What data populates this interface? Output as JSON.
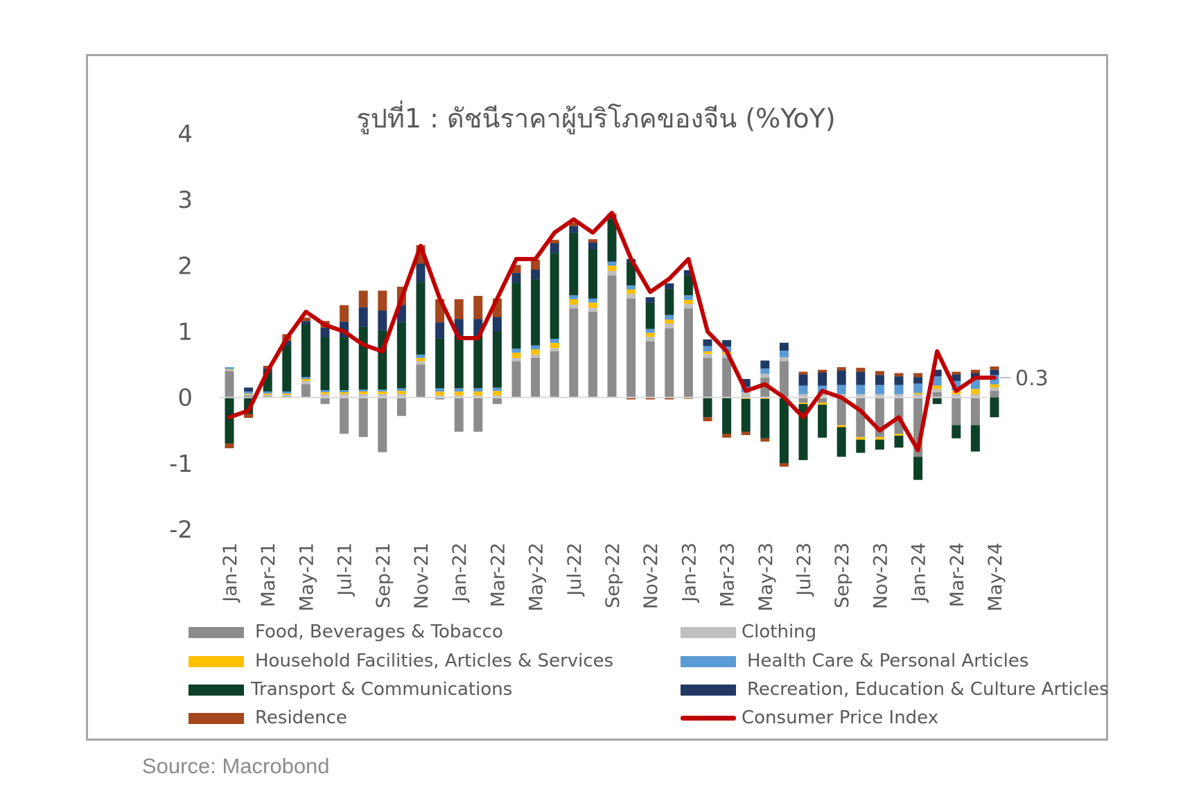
{
  "chart_data": {
    "type": "bar",
    "stacked": true,
    "title": "รูปที่1 : ดัชนีราคาผู้บริโภคของจีน (%YoY)",
    "ylim": [
      -2,
      4
    ],
    "yticks": [
      "4",
      "3",
      "2",
      "1",
      "0",
      "-1",
      "-2"
    ],
    "grid": false,
    "legend_position": "bottom",
    "source": "Source:  Macrobond",
    "last_value_label": "0.3",
    "categories": [
      "Jan-21",
      "Feb-21",
      "Mar-21",
      "Apr-21",
      "May-21",
      "Jun-21",
      "Jul-21",
      "Aug-21",
      "Sep-21",
      "Oct-21",
      "Nov-21",
      "Dec-21",
      "Jan-22",
      "Feb-22",
      "Mar-22",
      "Apr-22",
      "May-22",
      "Jun-22",
      "Jul-22",
      "Aug-22",
      "Sep-22",
      "Oct-22",
      "Nov-22",
      "Dec-22",
      "Jan-23",
      "Feb-23",
      "Mar-23",
      "Apr-23",
      "May-23",
      "Jun-23",
      "Jul-23",
      "Aug-23",
      "Sep-23",
      "Oct-23",
      "Nov-23",
      "Dec-23",
      "Jan-24",
      "Feb-24",
      "Mar-24",
      "Apr-24",
      "May-24"
    ],
    "tick_labels": [
      "Jan-21",
      "Mar-21",
      "May-21",
      "Jul-21",
      "Sep-21",
      "Nov-21",
      "Jan-22",
      "Mar-22",
      "May-22",
      "Jul-22",
      "Sep-22",
      "Nov-22",
      "Jan-23",
      "Mar-23",
      "May-23",
      "Jul-23",
      "Sep-23",
      "Nov-23",
      "Jan-24",
      "Mar-24",
      "May-24"
    ],
    "series": [
      {
        "name": "Food, Beverages & Tobacco",
        "color": "#8c8c8c",
        "type": "bar",
        "values": [
          0.4,
          0.03,
          0.02,
          0.02,
          0.2,
          -0.1,
          -0.55,
          -0.6,
          -0.83,
          -0.28,
          0.5,
          -0.03,
          -0.52,
          -0.52,
          -0.1,
          0.55,
          0.6,
          0.7,
          1.35,
          1.3,
          1.85,
          1.5,
          0.85,
          1.05,
          1.35,
          0.6,
          0.6,
          0.02,
          0.3,
          0.55,
          -0.08,
          -0.08,
          -0.42,
          -0.6,
          -0.6,
          -0.55,
          -0.9,
          0.08,
          -0.42,
          -0.42,
          0.1
        ]
      },
      {
        "name": "Clothing",
        "color": "#bfbfbf",
        "type": "bar",
        "values": [
          0.02,
          0.02,
          0.02,
          0.02,
          0.05,
          0.05,
          0.05,
          0.05,
          0.05,
          0.05,
          0.05,
          0.03,
          0.03,
          0.03,
          0.03,
          0.05,
          0.05,
          0.05,
          0.06,
          0.06,
          0.07,
          0.07,
          0.07,
          0.07,
          0.07,
          0.06,
          0.06,
          0.06,
          0.06,
          0.06,
          0.05,
          0.05,
          0.05,
          0.05,
          0.05,
          0.05,
          0.05,
          0.05,
          0.05,
          0.05,
          0.05
        ]
      },
      {
        "name": "Household Facilities, Articles & Services",
        "color": "#ffc000",
        "type": "bar",
        "values": [
          0.01,
          0.01,
          0.02,
          0.02,
          0.03,
          0.03,
          0.03,
          0.04,
          0.04,
          0.05,
          0.05,
          0.06,
          0.06,
          0.06,
          0.07,
          0.08,
          0.08,
          0.08,
          0.08,
          0.08,
          0.08,
          0.07,
          0.06,
          0.06,
          0.06,
          0.04,
          0.03,
          -0.02,
          -0.02,
          0.0,
          -0.02,
          -0.03,
          -0.03,
          -0.04,
          -0.04,
          -0.03,
          0.02,
          0.05,
          0.06,
          0.08,
          0.05
        ]
      },
      {
        "name": "Health Care & Personal Articles",
        "color": "#5b9bd5",
        "type": "bar",
        "values": [
          0.03,
          0.03,
          0.03,
          0.03,
          0.03,
          0.03,
          0.03,
          0.03,
          0.03,
          0.04,
          0.05,
          0.05,
          0.05,
          0.05,
          0.05,
          0.06,
          0.06,
          0.06,
          0.06,
          0.06,
          0.06,
          0.06,
          0.06,
          0.07,
          0.07,
          0.08,
          0.08,
          0.08,
          0.08,
          0.1,
          0.13,
          0.13,
          0.14,
          0.14,
          0.14,
          0.14,
          0.14,
          0.14,
          0.14,
          0.14,
          0.14
        ]
      },
      {
        "name": "Transport & Communications",
        "color": "#0d4029",
        "type": "bar",
        "values": [
          -0.7,
          -0.25,
          0.3,
          0.7,
          0.8,
          0.8,
          0.8,
          0.95,
          0.9,
          1.0,
          1.1,
          0.75,
          0.8,
          0.8,
          0.85,
          1.0,
          1.0,
          1.3,
          0.95,
          0.75,
          0.65,
          0.35,
          0.4,
          0.4,
          0.3,
          -0.3,
          -0.55,
          -0.5,
          -0.6,
          -1.0,
          -0.85,
          -0.5,
          -0.45,
          -0.2,
          -0.15,
          -0.18,
          -0.35,
          -0.1,
          -0.2,
          -0.4,
          -0.3
        ]
      },
      {
        "name": "Recreation, Education & Culture Articles",
        "color": "#203864",
        "type": "bar",
        "values": [
          0.0,
          0.06,
          0.05,
          0.07,
          0.05,
          0.15,
          0.24,
          0.3,
          0.3,
          0.26,
          0.28,
          0.25,
          0.25,
          0.25,
          0.22,
          0.15,
          0.15,
          0.15,
          0.1,
          0.1,
          0.05,
          0.05,
          0.08,
          0.08,
          0.08,
          0.1,
          0.1,
          0.12,
          0.12,
          0.12,
          0.17,
          0.2,
          0.22,
          0.2,
          0.15,
          0.13,
          0.1,
          0.1,
          0.1,
          0.1,
          0.08
        ]
      },
      {
        "name": "Residence",
        "color": "#a5461d",
        "type": "bar",
        "values": [
          -0.07,
          -0.06,
          0.04,
          0.1,
          0.05,
          0.1,
          0.25,
          0.25,
          0.3,
          0.28,
          0.28,
          0.35,
          0.3,
          0.35,
          0.28,
          0.12,
          0.15,
          0.05,
          0.05,
          0.05,
          0.03,
          -0.03,
          -0.03,
          -0.03,
          -0.02,
          -0.06,
          -0.06,
          -0.05,
          -0.05,
          -0.05,
          0.04,
          0.04,
          0.05,
          0.06,
          0.06,
          0.05,
          0.06,
          0.0,
          0.04,
          0.05,
          0.05
        ]
      },
      {
        "name": "Consumer Price Index",
        "color": "#c00000",
        "type": "line",
        "values": [
          -0.3,
          -0.2,
          0.4,
          0.9,
          1.3,
          1.1,
          1.0,
          0.8,
          0.7,
          1.5,
          2.3,
          1.5,
          0.9,
          0.9,
          1.5,
          2.1,
          2.1,
          2.5,
          2.7,
          2.5,
          2.8,
          2.1,
          1.6,
          1.8,
          2.1,
          1.0,
          0.7,
          0.1,
          0.2,
          0.0,
          -0.3,
          0.1,
          0.0,
          -0.2,
          -0.5,
          -0.3,
          -0.8,
          0.7,
          0.1,
          0.3,
          0.3
        ]
      }
    ]
  },
  "legend": {
    "food": "Food, Beverages & Tobacco",
    "clothing": "Clothing",
    "household": "Household Facilities, Articles & Services",
    "health": "Health Care & Personal Articles",
    "transport": "Transport & Communications",
    "recreation": "Recreation, Education & Culture Articles",
    "residence": "Residence",
    "cpi": "Consumer Price Index"
  }
}
